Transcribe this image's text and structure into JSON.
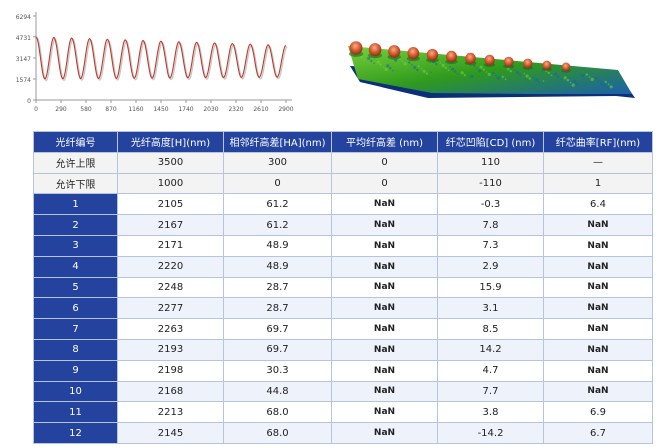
{
  "line_chart": {
    "type": "line",
    "x_ticks": [
      "0",
      "290",
      "580",
      "870",
      "1160",
      "1450",
      "1740",
      "2030",
      "2320",
      "2610",
      "2900"
    ],
    "y_ticks": [
      "6294",
      "4731",
      "3147",
      "1574",
      "0"
    ],
    "xlim": [
      0,
      2900
    ],
    "ylim": [
      0,
      6294
    ],
    "wave": {
      "cycles": 14,
      "min": 1574,
      "max": 4731
    },
    "colors": {
      "line": "#c0392b",
      "axis": "#9a9a9a",
      "shadow": "#c9c9c9"
    }
  },
  "surface": {
    "colors": {
      "base": "#2f9a1e",
      "light": "#7bd13c",
      "dark": "#1c5fae",
      "peak": "#d9562b"
    }
  },
  "table": {
    "headers": [
      "光纤编号",
      "光纤高度[H](nm)",
      "相邻纤高差[HA](nm)",
      "平均纤高差 (nm)",
      "纤芯凹陷[CD] (nm)",
      "纤芯曲率[RF](nm)"
    ],
    "limits": [
      [
        "允许上限",
        "3500",
        "300",
        "0",
        "110",
        "—"
      ],
      [
        "允许下限",
        "1000",
        "0",
        "0",
        "-110",
        "1"
      ]
    ],
    "rows": [
      [
        "1",
        "2105",
        "61.2",
        "NaN",
        "-0.3",
        "6.4"
      ],
      [
        "2",
        "2167",
        "61.2",
        "NaN",
        "7.8",
        "NaN"
      ],
      [
        "3",
        "2171",
        "48.9",
        "NaN",
        "7.3",
        "NaN"
      ],
      [
        "4",
        "2220",
        "48.9",
        "NaN",
        "2.9",
        "NaN"
      ],
      [
        "5",
        "2248",
        "28.7",
        "NaN",
        "15.9",
        "NaN"
      ],
      [
        "6",
        "2277",
        "28.7",
        "NaN",
        "3.1",
        "NaN"
      ],
      [
        "7",
        "2263",
        "69.7",
        "NaN",
        "8.5",
        "NaN"
      ],
      [
        "8",
        "2193",
        "69.7",
        "NaN",
        "14.2",
        "NaN"
      ],
      [
        "9",
        "2198",
        "30.3",
        "NaN",
        "4.7",
        "NaN"
      ],
      [
        "10",
        "2168",
        "44.8",
        "NaN",
        "7.7",
        "NaN"
      ],
      [
        "11",
        "2213",
        "68.0",
        "NaN",
        "3.8",
        "6.9"
      ],
      [
        "12",
        "2145",
        "68.0",
        "NaN",
        "-14.2",
        "6.7"
      ]
    ],
    "colors": {
      "header_bg": "#23439e",
      "header_text": "#ffffff",
      "border": "#b7c4de"
    }
  }
}
